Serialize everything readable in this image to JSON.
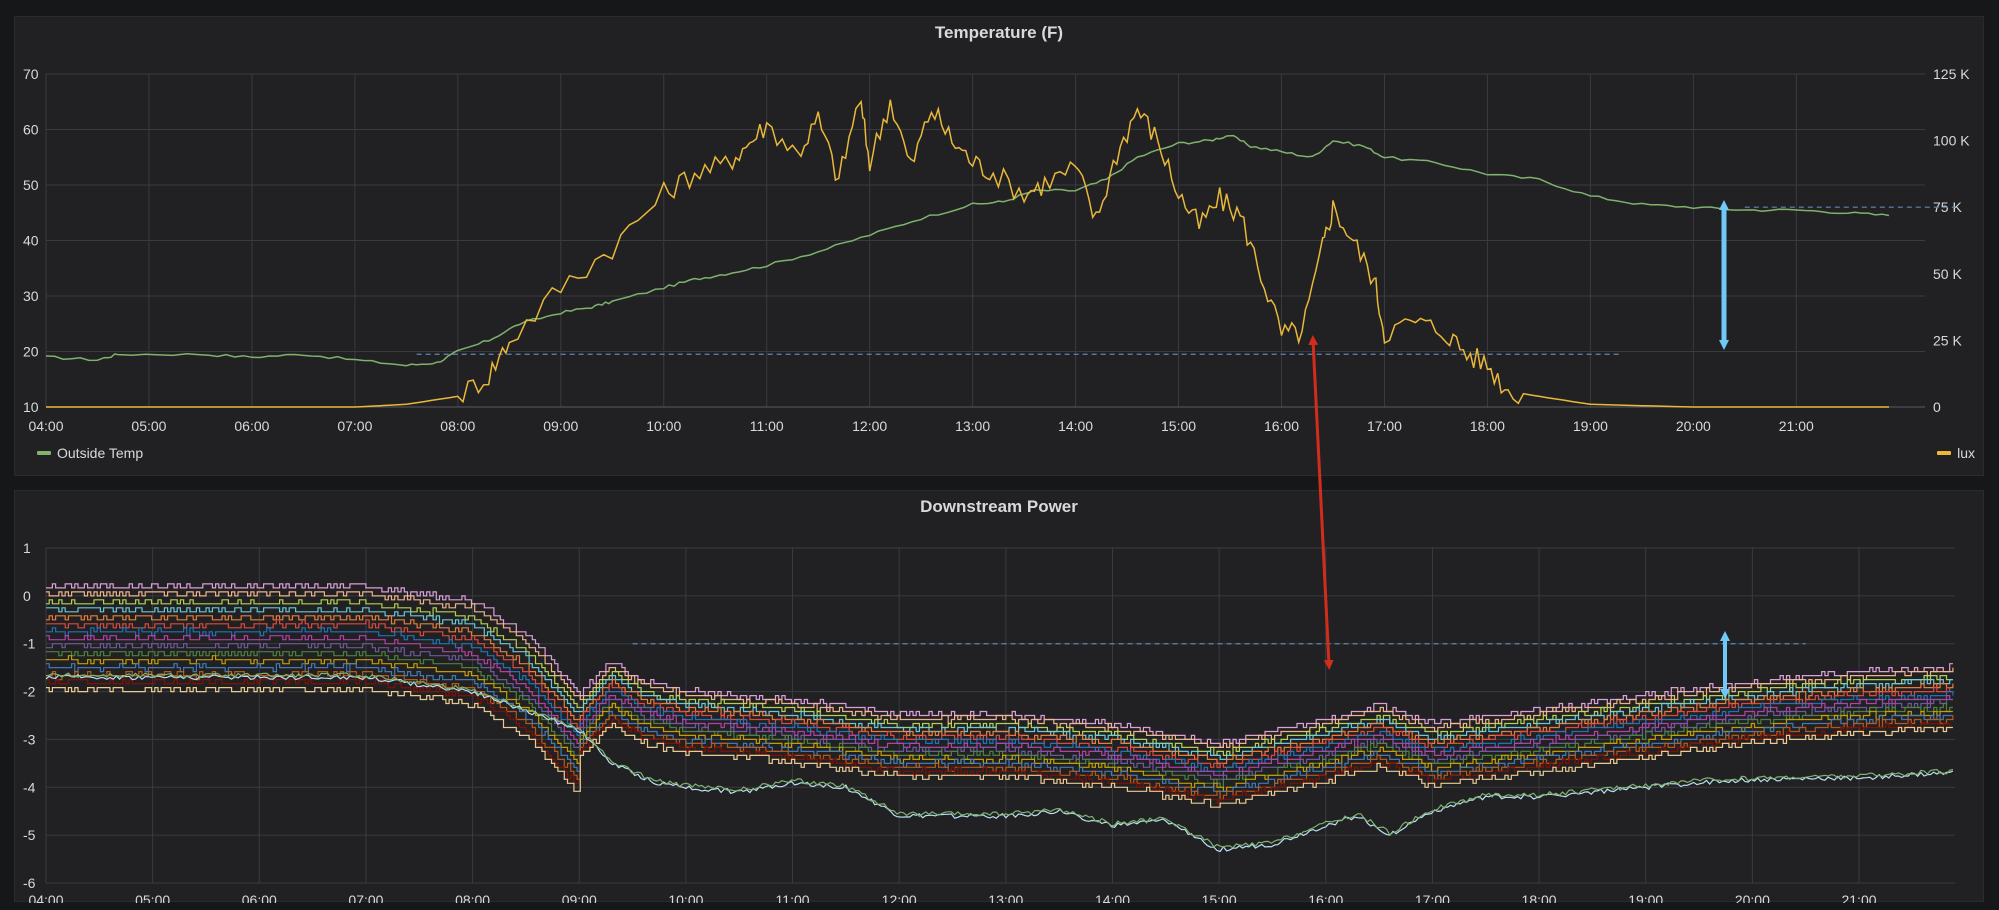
{
  "chart_data": [
    {
      "type": "line",
      "title": "Temperature (F)",
      "x_ticks": [
        "04:00",
        "05:00",
        "06:00",
        "07:00",
        "08:00",
        "09:00",
        "10:00",
        "11:00",
        "12:00",
        "13:00",
        "14:00",
        "15:00",
        "16:00",
        "17:00",
        "18:00",
        "19:00",
        "20:00",
        "21:00"
      ],
      "y_left_ticks": [
        "10",
        "20",
        "30",
        "40",
        "50",
        "60",
        "70"
      ],
      "y_right_ticks": [
        "0",
        "25 K",
        "50 K",
        "75 K",
        "100 K",
        "125 K"
      ],
      "xlim_hours": [
        4,
        22.25
      ],
      "ylim_left": [
        10,
        70
      ],
      "ylim_right": [
        0,
        125000
      ],
      "grid": true,
      "series": [
        {
          "name": "Outside Temp",
          "axis": "left",
          "color": "#7eb26d",
          "points": [
            [
              4,
              19
            ],
            [
              4.5,
              18.5
            ],
            [
              4.7,
              19.5
            ],
            [
              5.5,
              19.5
            ],
            [
              6,
              19
            ],
            [
              6.5,
              19.5
            ],
            [
              7,
              18.5
            ],
            [
              7.5,
              17.5
            ],
            [
              7.8,
              18
            ],
            [
              8,
              20
            ],
            [
              8.3,
              22
            ],
            [
              8.6,
              25
            ],
            [
              9,
              27
            ],
            [
              9.3,
              28
            ],
            [
              9.5,
              29
            ],
            [
              10,
              31.5
            ],
            [
              10.3,
              33
            ],
            [
              10.6,
              34
            ],
            [
              11,
              35.5
            ],
            [
              11.5,
              38
            ],
            [
              12,
              41
            ],
            [
              12.5,
              44
            ],
            [
              13,
              46.5
            ],
            [
              13.3,
              47
            ],
            [
              13.6,
              49
            ],
            [
              14,
              49
            ],
            [
              14.3,
              51
            ],
            [
              14.6,
              55
            ],
            [
              15,
              57.5
            ],
            [
              15.3,
              58
            ],
            [
              15.5,
              59
            ],
            [
              15.7,
              57
            ],
            [
              16,
              56
            ],
            [
              16.3,
              55
            ],
            [
              16.5,
              58
            ],
            [
              16.8,
              57
            ],
            [
              17,
              55
            ],
            [
              17.5,
              54
            ],
            [
              18,
              52
            ],
            [
              18.5,
              51
            ],
            [
              19,
              48
            ],
            [
              19.5,
              46.5
            ],
            [
              20,
              46
            ],
            [
              20.5,
              45.5
            ],
            [
              21,
              45.5
            ],
            [
              21.5,
              45
            ],
            [
              21.9,
              44.5
            ]
          ]
        },
        {
          "name": "lux",
          "axis": "right",
          "color": "#eab839",
          "points": [
            [
              4,
              0
            ],
            [
              7,
              0
            ],
            [
              7.5,
              1000
            ],
            [
              8,
              4000
            ],
            [
              8.3,
              12000
            ],
            [
              8.5,
              25000
            ],
            [
              9,
              45000
            ],
            [
              9.5,
              60000
            ],
            [
              10,
              80000
            ],
            [
              10.3,
              88000
            ],
            [
              10.6,
              91000
            ],
            [
              10.8,
              98000
            ],
            [
              11,
              106000
            ],
            [
              11.3,
              95000
            ],
            [
              11.5,
              108000
            ],
            [
              11.7,
              85000
            ],
            [
              11.9,
              116000
            ],
            [
              12,
              92000
            ],
            [
              12.2,
              115000
            ],
            [
              12.4,
              90000
            ],
            [
              12.6,
              112000
            ],
            [
              12.8,
              100000
            ],
            [
              13,
              92000
            ],
            [
              13.2,
              88000
            ],
            [
              13.5,
              80000
            ],
            [
              13.7,
              84000
            ],
            [
              14,
              90000
            ],
            [
              14.2,
              70000
            ],
            [
              14.4,
              95000
            ],
            [
              14.6,
              112000
            ],
            [
              14.8,
              100000
            ],
            [
              15,
              80000
            ],
            [
              15.2,
              68000
            ],
            [
              15.4,
              78000
            ],
            [
              15.6,
              72000
            ],
            [
              15.8,
              50000
            ],
            [
              16,
              27500
            ],
            [
              16.2,
              28000
            ],
            [
              16.4,
              60000
            ],
            [
              16.5,
              75000
            ],
            [
              16.7,
              62000
            ],
            [
              16.9,
              48000
            ],
            [
              17,
              28000
            ],
            [
              17.3,
              32000
            ],
            [
              17.6,
              28000
            ],
            [
              17.8,
              20000
            ],
            [
              18,
              16000
            ],
            [
              18.2,
              6000
            ],
            [
              18.5,
              4000
            ],
            [
              19,
              1000
            ],
            [
              20,
              0
            ],
            [
              21.9,
              0
            ]
          ]
        }
      ]
    },
    {
      "type": "line",
      "title": "Downstream Power",
      "x_ticks": [
        "04:00",
        "05:00",
        "06:00",
        "07:00",
        "08:00",
        "09:00",
        "10:00",
        "11:00",
        "12:00",
        "13:00",
        "14:00",
        "15:00",
        "16:00",
        "17:00",
        "18:00",
        "19:00",
        "20:00",
        "21:00"
      ],
      "y_ticks": [
        "-6",
        "-5",
        "-4",
        "-3",
        "-2",
        "-1",
        "0",
        "1"
      ],
      "xlim_hours": [
        4,
        21.9
      ],
      "ylim": [
        -6,
        1
      ],
      "grid": true,
      "series_profile": {
        "x": [
          4,
          7,
          8,
          8.5,
          9,
          9.3,
          9.6,
          10,
          11,
          12,
          13,
          14,
          15,
          16,
          16.5,
          17,
          18,
          19,
          20,
          21,
          21.9
        ],
        "y": [
          0,
          0,
          -0.3,
          -1,
          -2.2,
          -1.5,
          -1.9,
          -2.1,
          -2.3,
          -2.6,
          -2.6,
          -2.8,
          -3.2,
          -2.7,
          -2.4,
          -2.8,
          -2.5,
          -2.2,
          -1.9,
          -1.7,
          -1.6
        ]
      },
      "series_offsets": [
        0.2,
        0.05,
        -0.15,
        -0.3,
        -0.45,
        -0.6,
        -0.75,
        -0.9,
        -1.05,
        -1.2,
        -1.35,
        -1.5,
        -1.65,
        -1.8,
        -1.95
      ],
      "series_colors": [
        "#e5a8e2",
        "#f9ba8f",
        "#bada55",
        "#6ed0e0",
        "#ef843c",
        "#e24d42",
        "#1f78c1",
        "#ba43a9",
        "#705da0",
        "#508642",
        "#cca300",
        "#447ebc",
        "#c15c17",
        "#890f02",
        "#f4d598"
      ],
      "low_series": {
        "colors": [
          "#badff4",
          "#7eb26d"
        ],
        "points": [
          [
            4,
            -1.7
          ],
          [
            7,
            -1.7
          ],
          [
            8,
            -2
          ],
          [
            8.5,
            -2.4
          ],
          [
            9,
            -2.8
          ],
          [
            9.3,
            -3.5
          ],
          [
            9.7,
            -3.9
          ],
          [
            10,
            -4
          ],
          [
            10.5,
            -4.1
          ],
          [
            11,
            -3.9
          ],
          [
            11.5,
            -4
          ],
          [
            12,
            -4.6
          ],
          [
            13,
            -4.6
          ],
          [
            13.5,
            -4.5
          ],
          [
            14,
            -4.8
          ],
          [
            14.5,
            -4.7
          ],
          [
            15,
            -5.3
          ],
          [
            15.5,
            -5.2
          ],
          [
            16,
            -4.8
          ],
          [
            16.3,
            -4.6
          ],
          [
            16.6,
            -5
          ],
          [
            17,
            -4.5
          ],
          [
            17.5,
            -4.2
          ],
          [
            18,
            -4.2
          ],
          [
            18.5,
            -4.1
          ],
          [
            19,
            -4
          ],
          [
            19.5,
            -3.9
          ],
          [
            20,
            -3.85
          ],
          [
            21,
            -3.8
          ],
          [
            21.9,
            -3.7
          ]
        ]
      }
    }
  ],
  "legend": {
    "left_label": "Outside Temp",
    "left_color": "#7eb26d",
    "right_label": "lux",
    "right_color": "#eab839"
  },
  "annotations": {
    "blue_arrow_color": "#6fc8f5",
    "red_arrow_color": "#d12d1c"
  }
}
